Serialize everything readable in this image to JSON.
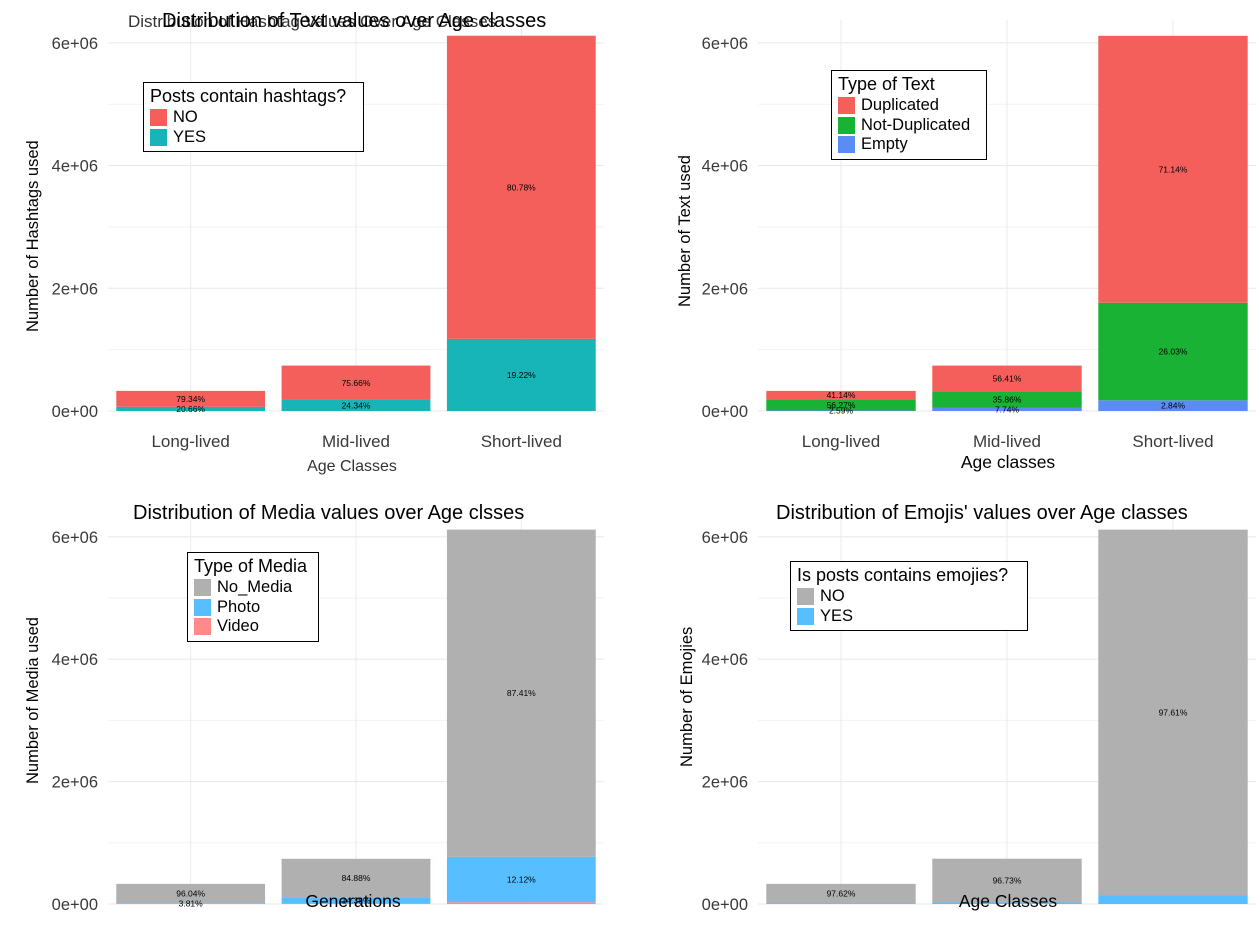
{
  "chart_data": [
    {
      "type": "bar",
      "stacked": true,
      "title": "Distribution of Hashtag Values Over Age Classes",
      "xlabel": "Age Classes",
      "ylabel": "Number of Hashtags used",
      "categories": [
        "Long-lived",
        "Mid-lived",
        "Short-lived"
      ],
      "y_ticks": [
        "0e+00",
        "2e+06",
        "4e+06",
        "6e+06"
      ],
      "ylim": [
        0,
        6000000
      ],
      "grid": true,
      "legend": {
        "title": "Posts contain hashtags?",
        "position": "top-left"
      },
      "series": [
        {
          "name": "NO",
          "color": "#F45F5C",
          "values": [
            260000,
            560000,
            4940000
          ],
          "labels": [
            "79.34%",
            "75.66%",
            "80.78%"
          ]
        },
        {
          "name": "YES",
          "color": "#17B5B8",
          "values": [
            68000,
            180000,
            1176000
          ],
          "labels": [
            "20.66%",
            "24.34%",
            "19.22%"
          ]
        }
      ]
    },
    {
      "type": "bar",
      "stacked": true,
      "title": "Distribution of Text values over Age classes",
      "xlabel": "Age classes",
      "ylabel": "Number of Text used",
      "categories": [
        "Long-lived",
        "Mid-lived",
        "Short-lived"
      ],
      "y_ticks": [
        "0e+00",
        "2e+06",
        "4e+06",
        "6e+06"
      ],
      "ylim": [
        0,
        6000000
      ],
      "grid": true,
      "legend": {
        "title": "Type of Text",
        "position": "top-left"
      },
      "series": [
        {
          "name": "Duplicated",
          "color": "#F45F5C",
          "values": [
            135000,
            418000,
            4350000
          ],
          "labels": [
            "41.14%",
            "56.41%",
            "71.14%"
          ]
        },
        {
          "name": "Not-Duplicated",
          "color": "#1AB234",
          "values": [
            184000,
            265000,
            1590000
          ],
          "labels": [
            "56.27%",
            "35.86%",
            "26.03%"
          ]
        },
        {
          "name": "Empty",
          "color": "#5B8CF4",
          "values": [
            8500,
            57000,
            174000
          ],
          "labels": [
            "2.59%",
            "7.74%",
            "2.84%"
          ]
        }
      ]
    },
    {
      "type": "bar",
      "stacked": true,
      "title": "Distribution of Media values over Age clsses",
      "xlabel": "Generations",
      "ylabel": "Number of Media used",
      "categories": [
        "Long-lived",
        "Mid-lived",
        "Short-lived"
      ],
      "y_ticks": [
        "0e+00",
        "2e+06",
        "4e+06",
        "6e+06"
      ],
      "ylim": [
        0,
        6000000
      ],
      "grid": true,
      "legend": {
        "title": "Type of Media",
        "position": "top-left"
      },
      "series": [
        {
          "name": "No_Media",
          "color": "#B0B0B0",
          "values": [
            316000,
            627000,
            5346000
          ],
          "labels": [
            "96.04%",
            "84.88%",
            "87.41%"
          ]
        },
        {
          "name": "Photo",
          "color": "#57BFFF",
          "values": [
            12500,
            106000,
            742000
          ],
          "labels": [
            "3.81%",
            "14.38%",
            "12.12%"
          ]
        },
        {
          "name": "Video",
          "color": "#FF8A8A",
          "values": [
            500,
            5500,
            29000
          ],
          "labels": [
            "",
            "",
            ""
          ]
        }
      ]
    },
    {
      "type": "bar",
      "stacked": true,
      "title": "Distribution of Emojis' values over Age classes",
      "xlabel": "Age Classes",
      "ylabel": "Number of Emojies",
      "categories": [
        "Long-lived",
        "Mid-lived",
        "Short-lived"
      ],
      "y_ticks": [
        "0e+00",
        "2e+06",
        "4e+06",
        "6e+06"
      ],
      "ylim": [
        0,
        6000000
      ],
      "grid": true,
      "legend": {
        "title": "Is posts contains emojies?",
        "position": "top-left"
      },
      "series": [
        {
          "name": "NO",
          "color": "#B0B0B0",
          "values": [
            321000,
            716000,
            5970000
          ],
          "labels": [
            "97.62%",
            "96.73%",
            "97.61%"
          ]
        },
        {
          "name": "YES",
          "color": "#57BFFF",
          "values": [
            8000,
            24000,
            146000
          ],
          "labels": [
            "",
            "",
            ""
          ]
        }
      ]
    }
  ]
}
